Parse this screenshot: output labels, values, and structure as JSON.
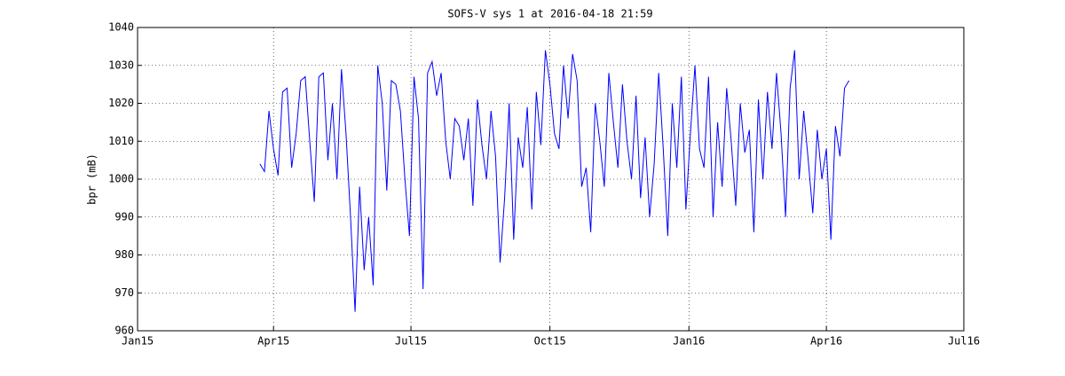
{
  "chart_data": {
    "type": "line",
    "title": "SOFS-V sys 1 at 2016-04-18 21:59",
    "ylabel": "bpr (mB)",
    "x": [
      "2015-03-23",
      "2015-03-26",
      "2015-03-29",
      "2015-04-01",
      "2015-04-04",
      "2015-04-07",
      "2015-04-10",
      "2015-04-13",
      "2015-04-16",
      "2015-04-19",
      "2015-04-22",
      "2015-04-25",
      "2015-04-28",
      "2015-05-01",
      "2015-05-04",
      "2015-05-07",
      "2015-05-10",
      "2015-05-13",
      "2015-05-16",
      "2015-05-19",
      "2015-05-22",
      "2015-05-25",
      "2015-05-28",
      "2015-05-31",
      "2015-06-03",
      "2015-06-06",
      "2015-06-09",
      "2015-06-12",
      "2015-06-15",
      "2015-06-18",
      "2015-06-21",
      "2015-06-24",
      "2015-06-27",
      "2015-06-30",
      "2015-07-03",
      "2015-07-06",
      "2015-07-09",
      "2015-07-12",
      "2015-07-15",
      "2015-07-18",
      "2015-07-21",
      "2015-07-24",
      "2015-07-27",
      "2015-07-30",
      "2015-08-02",
      "2015-08-05",
      "2015-08-08",
      "2015-08-11",
      "2015-08-14",
      "2015-08-17",
      "2015-08-20",
      "2015-08-23",
      "2015-08-26",
      "2015-08-29",
      "2015-09-01",
      "2015-09-04",
      "2015-09-07",
      "2015-09-10",
      "2015-09-13",
      "2015-09-16",
      "2015-09-19",
      "2015-09-22",
      "2015-09-25",
      "2015-09-28",
      "2015-10-01",
      "2015-10-04",
      "2015-10-07",
      "2015-10-10",
      "2015-10-13",
      "2015-10-16",
      "2015-10-19",
      "2015-10-22",
      "2015-10-25",
      "2015-10-28",
      "2015-10-31",
      "2015-11-03",
      "2015-11-06",
      "2015-11-09",
      "2015-11-12",
      "2015-11-15",
      "2015-11-18",
      "2015-11-21",
      "2015-11-24",
      "2015-11-27",
      "2015-11-30",
      "2015-12-03",
      "2015-12-06",
      "2015-12-09",
      "2015-12-12",
      "2015-12-15",
      "2015-12-18",
      "2015-12-21",
      "2015-12-24",
      "2015-12-27",
      "2015-12-30",
      "2016-01-02",
      "2016-01-05",
      "2016-01-08",
      "2016-01-11",
      "2016-01-14",
      "2016-01-17",
      "2016-01-20",
      "2016-01-23",
      "2016-01-26",
      "2016-01-29",
      "2016-02-01",
      "2016-02-04",
      "2016-02-07",
      "2016-02-10",
      "2016-02-13",
      "2016-02-16",
      "2016-02-19",
      "2016-02-22",
      "2016-02-25",
      "2016-02-28",
      "2016-03-02",
      "2016-03-05",
      "2016-03-08",
      "2016-03-11",
      "2016-03-14",
      "2016-03-17",
      "2016-03-20",
      "2016-03-23",
      "2016-03-26",
      "2016-03-29",
      "2016-04-01",
      "2016-04-04",
      "2016-04-07",
      "2016-04-10",
      "2016-04-13",
      "2016-04-16"
    ],
    "values": [
      1004,
      1002,
      1018,
      1008,
      1001,
      1023,
      1024,
      1003,
      1012,
      1026,
      1027,
      1010,
      994,
      1027,
      1028,
      1005,
      1020,
      1000,
      1029,
      1012,
      990,
      965,
      998,
      976,
      990,
      972,
      1030,
      1020,
      997,
      1026,
      1025,
      1018,
      1000,
      985,
      1027,
      1016,
      971,
      1028,
      1031,
      1022,
      1028,
      1010,
      1000,
      1016,
      1014,
      1005,
      1016,
      993,
      1021,
      1009,
      1000,
      1018,
      1006,
      978,
      995,
      1020,
      984,
      1011,
      1003,
      1019,
      992,
      1023,
      1009,
      1034,
      1025,
      1012,
      1008,
      1030,
      1016,
      1033,
      1026,
      998,
      1003,
      986,
      1020,
      1010,
      998,
      1028,
      1015,
      1003,
      1025,
      1010,
      1000,
      1022,
      995,
      1011,
      990,
      1004,
      1028,
      1008,
      985,
      1020,
      1003,
      1027,
      992,
      1012,
      1030,
      1008,
      1003,
      1027,
      990,
      1015,
      998,
      1024,
      1010,
      993,
      1020,
      1007,
      1013,
      986,
      1021,
      1000,
      1023,
      1008,
      1028,
      1012,
      990,
      1024,
      1034,
      1000,
      1018,
      1005,
      991,
      1013,
      1000,
      1008,
      984,
      1014,
      1006,
      1024,
      1026
    ],
    "color": "#0000ff",
    "xlim": [
      "2015-01-01",
      "2016-07-01"
    ],
    "xticks": [
      {
        "value": "2015-01-01",
        "label": "Jan15"
      },
      {
        "value": "2015-04-01",
        "label": "Apr15"
      },
      {
        "value": "2015-07-01",
        "label": "Jul15"
      },
      {
        "value": "2015-10-01",
        "label": "Oct15"
      },
      {
        "value": "2016-01-01",
        "label": "Jan16"
      },
      {
        "value": "2016-04-01",
        "label": "Apr16"
      },
      {
        "value": "2016-07-01",
        "label": "Jul16"
      }
    ],
    "ylim": [
      960,
      1040
    ],
    "yticks": [
      960,
      970,
      980,
      990,
      1000,
      1010,
      1020,
      1030,
      1040
    ],
    "grid": true
  }
}
